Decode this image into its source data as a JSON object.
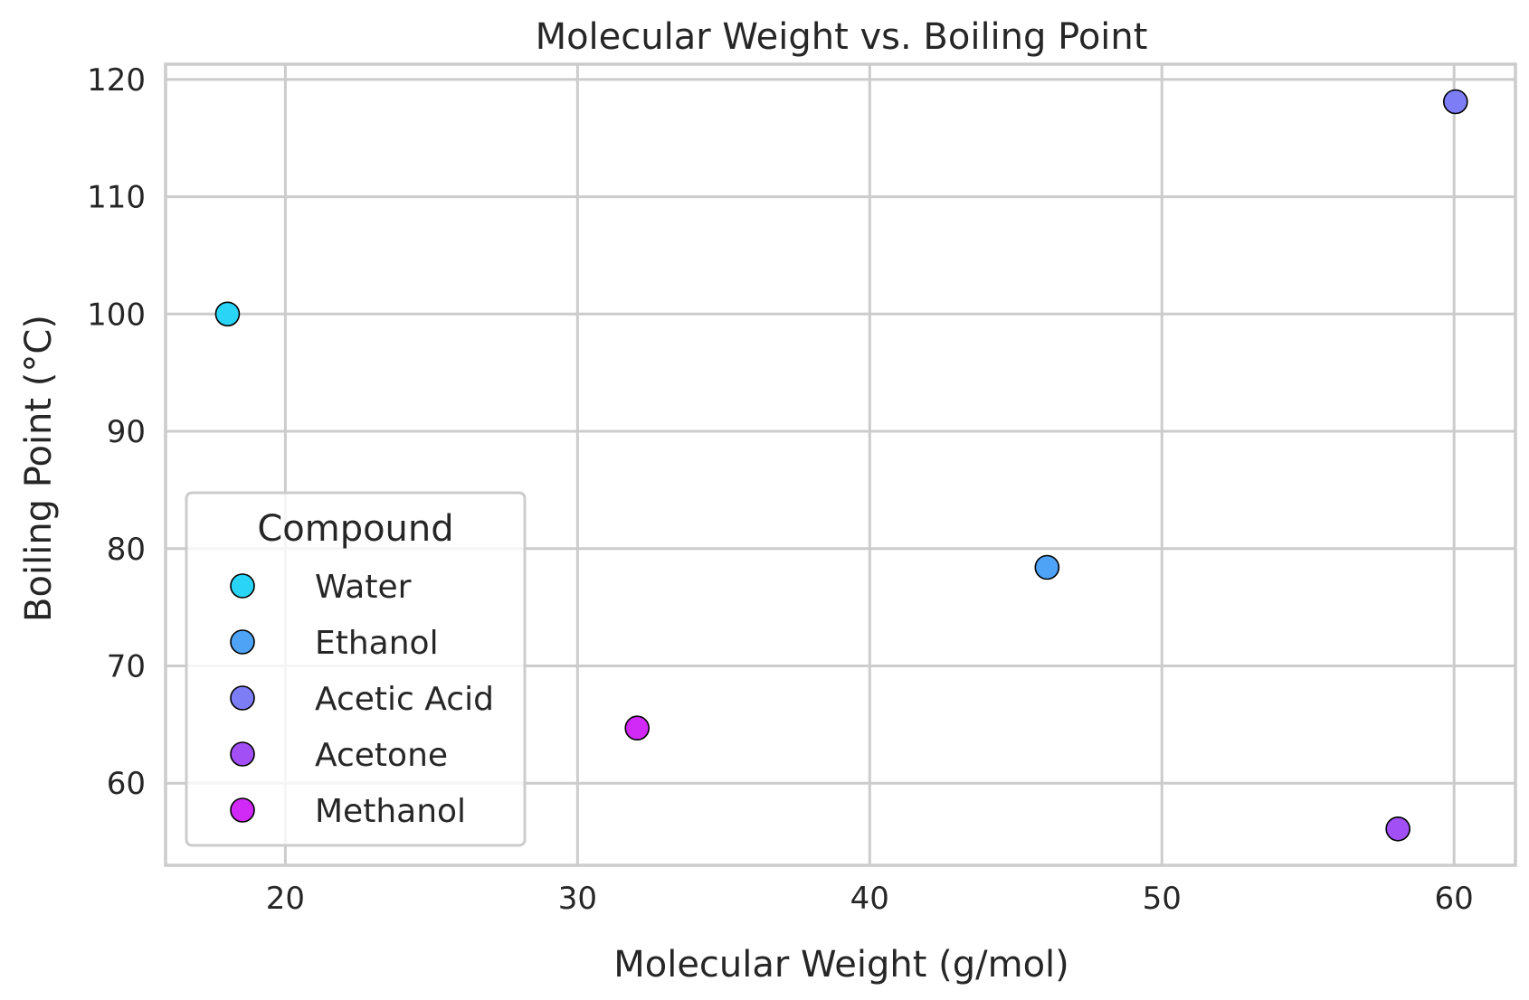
{
  "chart_data": {
    "type": "scatter",
    "title": "Molecular Weight vs. Boiling Point",
    "xlabel": "Molecular Weight (g/mol)",
    "ylabel": "Boiling Point (°C)",
    "xlim": [
      15.9,
      62.1
    ],
    "ylim": [
      53.0,
      121.3
    ],
    "x_ticks": [
      20,
      30,
      40,
      50,
      60
    ],
    "y_ticks": [
      60,
      70,
      80,
      90,
      100,
      110,
      120
    ],
    "grid": true,
    "legend": {
      "title": "Compound",
      "placement": "lower-left"
    },
    "series": [
      {
        "name": "Water",
        "x": 18.02,
        "y": 100.0,
        "color": "#2ad4f7"
      },
      {
        "name": "Ethanol",
        "x": 46.07,
        "y": 78.4,
        "color": "#4fa3f7"
      },
      {
        "name": "Acetic Acid",
        "x": 60.05,
        "y": 118.1,
        "color": "#7d7ef6"
      },
      {
        "name": "Acetone",
        "x": 58.08,
        "y": 56.1,
        "color": "#a250f5"
      },
      {
        "name": "Methanol",
        "x": 32.04,
        "y": 64.7,
        "color": "#d12af7"
      }
    ]
  }
}
